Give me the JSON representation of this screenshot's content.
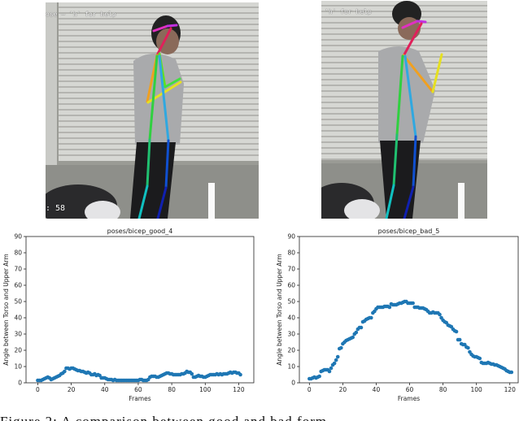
{
  "figure": {
    "left_photo": {
      "overlay_top": "ose — 'h' for help",
      "overlay_bottom": ": 58"
    },
    "right_photo": {
      "overlay_top": "'h' for help"
    },
    "caption": "Figure 2: A comparison between good and bad form"
  },
  "chart_data": [
    {
      "type": "scatter",
      "title": "poses/bicep_good_4",
      "xlabel": "Frames",
      "ylabel": "Angle between Torso and Upper Arm",
      "xlim": [
        -7,
        129
      ],
      "ylim": [
        0,
        90
      ],
      "xticks": [
        0,
        20,
        40,
        60,
        80,
        100,
        120
      ],
      "yticks": [
        0,
        10,
        20,
        30,
        40,
        50,
        60,
        70,
        80,
        90
      ],
      "color": "#1f77b4",
      "x_start": 0,
      "y": [
        1.5,
        1.5,
        1.5,
        2,
        2.5,
        3,
        3.5,
        3,
        2,
        2.5,
        3,
        3.5,
        4,
        4.5,
        5.5,
        6,
        7,
        9,
        9,
        8.5,
        9,
        9,
        8.5,
        8,
        7.5,
        7.5,
        7,
        7,
        6.5,
        6,
        6.5,
        6,
        5,
        5,
        5.5,
        4.5,
        5,
        4.5,
        3,
        3,
        3,
        2.5,
        2,
        2,
        2,
        1.5,
        2,
        1.5,
        1.5,
        1.5,
        1.5,
        1.5,
        1.5,
        1.5,
        1.5,
        1.5,
        1.5,
        1.5,
        1.5,
        1.5,
        1.5,
        2,
        2,
        1.5,
        1.5,
        1.5,
        2,
        3.5,
        4,
        4,
        4,
        3.5,
        3.5,
        4,
        4.5,
        5,
        5.5,
        6,
        6,
        5.5,
        5.5,
        5,
        5,
        5,
        5,
        5,
        5.5,
        5.5,
        6,
        7,
        6.5,
        6.5,
        5.5,
        3.5,
        3.5,
        4,
        4.5,
        4,
        4,
        3.5,
        3.5,
        4,
        4.5,
        5,
        5,
        5,
        5,
        5.5,
        5,
        5.5,
        5,
        5.5,
        5.5,
        5.5,
        6,
        6.5,
        6,
        6.5,
        6.5,
        6,
        6,
        5
      ]
    },
    {
      "type": "scatter",
      "title": "poses/bicep_bad_5",
      "xlabel": "Frames",
      "ylabel": "Angle between Torso and Upper Arm",
      "xlim": [
        -6,
        125
      ],
      "ylim": [
        0,
        90
      ],
      "xticks": [
        0,
        20,
        40,
        60,
        80,
        100,
        120
      ],
      "yticks": [
        0,
        10,
        20,
        30,
        40,
        50,
        60,
        70,
        80,
        90
      ],
      "color": "#1f77b4",
      "x_start": 0,
      "y": [
        2.5,
        2.5,
        3,
        3.5,
        3,
        3.5,
        4,
        7,
        7.5,
        8,
        8,
        8,
        7,
        9,
        11,
        12,
        14,
        16,
        21,
        21.5,
        24,
        25,
        26,
        26.5,
        27,
        27.5,
        28,
        30,
        31,
        33,
        34,
        34,
        37.5,
        38,
        39,
        39.5,
        40,
        40,
        43,
        44,
        45.5,
        46.5,
        46.5,
        46.5,
        46.5,
        47,
        47,
        47,
        46.5,
        48.5,
        48,
        48,
        48,
        48.5,
        49,
        49,
        49.5,
        50,
        50,
        49,
        49,
        49,
        49,
        46.5,
        46.5,
        46.5,
        46,
        46,
        46,
        45.5,
        45,
        44,
        43,
        43,
        43.5,
        43,
        43,
        43,
        42,
        40,
        38.5,
        37.5,
        37,
        35.5,
        35,
        34.5,
        33,
        32,
        31.5,
        26.5,
        26.5,
        24,
        23.5,
        23.5,
        22,
        21.5,
        19,
        17.5,
        16.5,
        16,
        16,
        15.5,
        15,
        12.5,
        12,
        12,
        12,
        12.5,
        12,
        11.5,
        11.5,
        11,
        11,
        10.5,
        10,
        9.5,
        9,
        8.5,
        7.5,
        7,
        6.5,
        6.5
      ]
    }
  ]
}
